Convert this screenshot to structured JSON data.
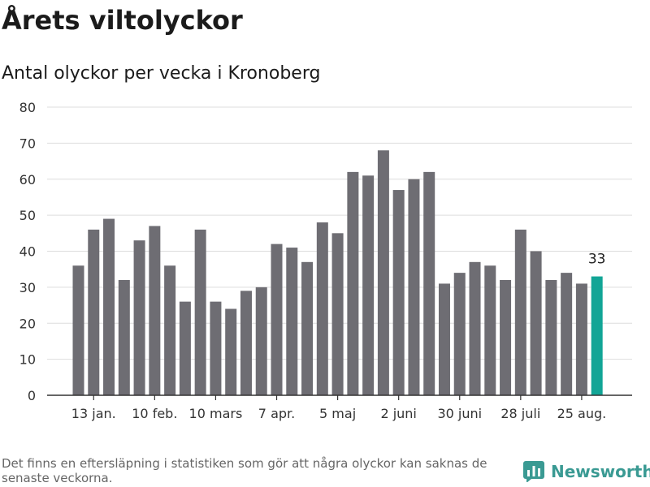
{
  "header": {
    "title": "Årets viltolyckor",
    "subtitle": "Antal olyckor per vecka i Kronoberg"
  },
  "footer": {
    "note": "Det finns en eftersläpning i statistiken som gör att några olyckor kan saknas de senaste veckorna.",
    "brand": "Newsworthy"
  },
  "colors": {
    "bar": "#6e6d73",
    "highlight": "#12a596",
    "grid": "#dddddd",
    "axis": "#333333",
    "brand": "#3a9a93"
  },
  "chart_data": {
    "type": "bar",
    "title": "Antal olyckor per vecka i Kronoberg",
    "ylim": [
      0,
      80
    ],
    "yticks": [
      0,
      10,
      20,
      30,
      40,
      50,
      60,
      70,
      80
    ],
    "grid": true,
    "values": [
      36,
      46,
      49,
      32,
      43,
      47,
      36,
      26,
      46,
      26,
      24,
      29,
      30,
      42,
      41,
      37,
      48,
      45,
      62,
      61,
      68,
      57,
      60,
      62,
      31,
      34,
      37,
      36,
      32,
      46,
      40,
      32,
      34,
      31,
      33
    ],
    "x_tick_labels": [
      {
        "index": 1,
        "label": "13 jan."
      },
      {
        "index": 5,
        "label": "10 feb."
      },
      {
        "index": 9,
        "label": "10 mars"
      },
      {
        "index": 13,
        "label": "7 apr."
      },
      {
        "index": 17,
        "label": "5 maj"
      },
      {
        "index": 21,
        "label": "2 juni"
      },
      {
        "index": 25,
        "label": "30 juni"
      },
      {
        "index": 29,
        "label": "28 juli"
      },
      {
        "index": 33,
        "label": "25 aug."
      }
    ],
    "highlight_index": 34,
    "highlight_label": "33"
  }
}
